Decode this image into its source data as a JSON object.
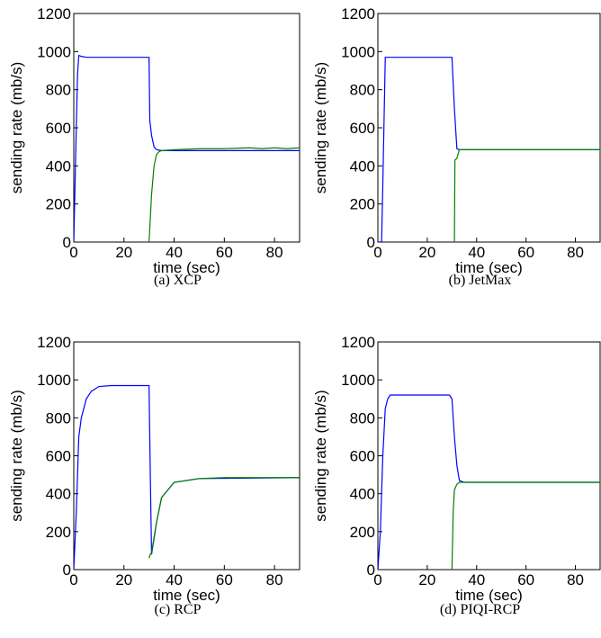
{
  "chart_data": [
    {
      "type": "line",
      "caption": "(a)  XCP",
      "xlabel": "time (sec)",
      "ylabel": "sending rate (mb/s)",
      "xlim": [
        0,
        90
      ],
      "xticks": [
        0,
        20,
        40,
        60,
        80
      ],
      "ylim": [
        0,
        1200
      ],
      "yticks": [
        0,
        200,
        400,
        600,
        800,
        1000,
        1200
      ],
      "series": [
        {
          "color": "#0000ff",
          "x": [
            0,
            1,
            1.5,
            2,
            3,
            5,
            10,
            20,
            30,
            30.3,
            31,
            32,
            33,
            35,
            40,
            60,
            90
          ],
          "values": [
            0,
            600,
            880,
            980,
            975,
            970,
            970,
            970,
            970,
            640,
            560,
            500,
            485,
            480,
            480,
            480,
            480
          ]
        },
        {
          "color": "#008000",
          "x": [
            30,
            31,
            32,
            33,
            34,
            35,
            40,
            50,
            60,
            70,
            75,
            80,
            85,
            90
          ],
          "values": [
            0,
            250,
            400,
            460,
            475,
            480,
            485,
            490,
            490,
            495,
            490,
            495,
            490,
            495
          ]
        }
      ]
    },
    {
      "type": "line",
      "caption": "(b)  JetMax",
      "xlabel": "time (sec)",
      "ylabel": "sending rate (mb/s)",
      "xlim": [
        0,
        90
      ],
      "xticks": [
        0,
        20,
        40,
        60,
        80
      ],
      "ylim": [
        0,
        1200
      ],
      "yticks": [
        0,
        200,
        400,
        600,
        800,
        1000,
        1200
      ],
      "series": [
        {
          "color": "#0000ff",
          "x": [
            0,
            1.5,
            2,
            3,
            30,
            31,
            32,
            33,
            90
          ],
          "values": [
            0,
            0,
            300,
            970,
            970,
            700,
            490,
            485,
            485
          ]
        },
        {
          "color": "#008000",
          "x": [
            31,
            31.2,
            32,
            33,
            90
          ],
          "values": [
            0,
            430,
            440,
            485,
            485
          ]
        }
      ]
    },
    {
      "type": "line",
      "caption": "(c)  RCP",
      "xlabel": "time (sec)",
      "ylabel": "sending rate (mb/s)",
      "xlim": [
        0,
        90
      ],
      "xticks": [
        0,
        20,
        40,
        60,
        80
      ],
      "ylim": [
        0,
        1200
      ],
      "yticks": [
        0,
        200,
        400,
        600,
        800,
        1000,
        1200
      ],
      "series": [
        {
          "color": "#0000ff",
          "x": [
            0,
            1,
            2,
            3,
            5,
            7,
            10,
            15,
            30,
            30.5,
            31,
            33,
            35,
            40,
            50,
            90
          ],
          "values": [
            0,
            300,
            700,
            800,
            900,
            940,
            965,
            970,
            970,
            500,
            80,
            250,
            380,
            460,
            480,
            485
          ]
        },
        {
          "color": "#008000",
          "x": [
            30,
            30.5,
            31,
            33,
            35,
            40,
            50,
            60,
            90
          ],
          "values": [
            60,
            80,
            90,
            250,
            380,
            460,
            480,
            485,
            485
          ]
        }
      ]
    },
    {
      "type": "line",
      "caption": "(d)  PIQI-RCP",
      "xlabel": "time (sec)",
      "ylabel": "sending rate (mb/s)",
      "xlim": [
        0,
        90
      ],
      "xticks": [
        0,
        20,
        40,
        60,
        80
      ],
      "ylim": [
        0,
        1200
      ],
      "yticks": [
        0,
        200,
        400,
        600,
        800,
        1000,
        1200
      ],
      "series": [
        {
          "color": "#0000ff",
          "x": [
            0,
            1,
            2,
            3,
            4,
            5,
            10,
            20,
            29,
            30,
            31,
            32,
            33,
            35,
            90
          ],
          "values": [
            0,
            200,
            600,
            850,
            900,
            920,
            920,
            920,
            920,
            900,
            700,
            550,
            470,
            460,
            460
          ]
        },
        {
          "color": "#008000",
          "x": [
            30,
            30.5,
            31,
            32,
            33,
            35,
            40,
            90
          ],
          "values": [
            0,
            300,
            420,
            450,
            460,
            460,
            460,
            460
          ]
        }
      ]
    }
  ]
}
